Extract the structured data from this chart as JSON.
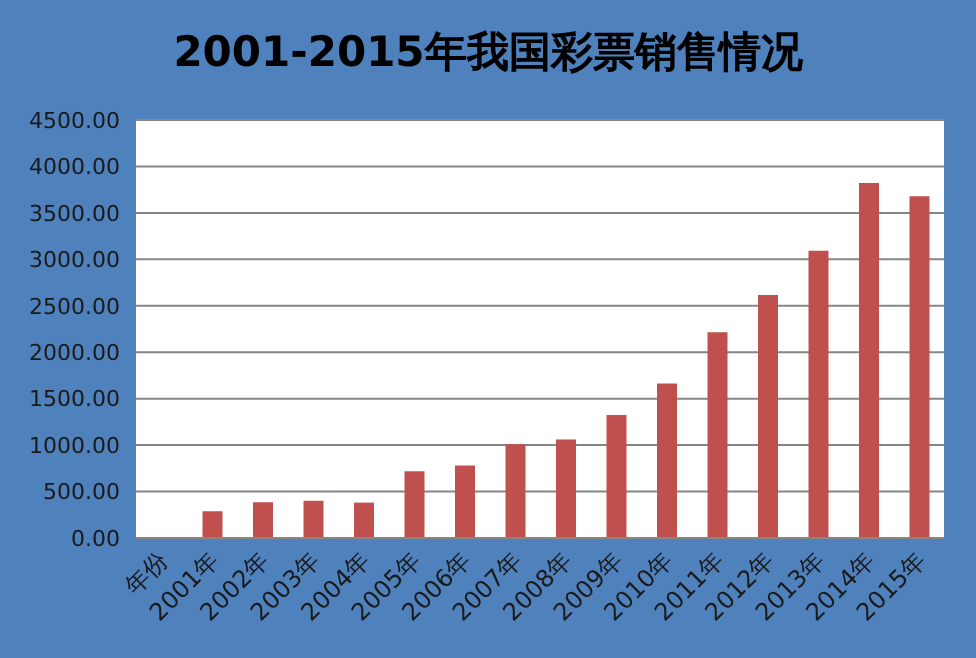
{
  "chart_data": {
    "type": "bar",
    "title": "2001-2015年我国彩票销售情况",
    "categories": [
      "年份",
      "2001年",
      "2002年",
      "2003年",
      "2004年",
      "2005年",
      "2006年",
      "2007年",
      "2008年",
      "2009年",
      "2010年",
      "2011年",
      "2012年",
      "2013年",
      "2014年",
      "2015年"
    ],
    "values": [
      null,
      288,
      385,
      401,
      381,
      718,
      780,
      1010,
      1060,
      1325,
      1662,
      2216,
      2615,
      3093,
      3823,
      3679
    ],
    "color": "#c0504d",
    "ylim": [
      0,
      4500
    ],
    "yticks": [
      {
        "value": 0,
        "label": "0.00"
      },
      {
        "value": 500,
        "label": "500.00"
      },
      {
        "value": 1000,
        "label": "1000.00"
      },
      {
        "value": 1500,
        "label": "1500.00"
      },
      {
        "value": 2000,
        "label": "2000.00"
      },
      {
        "value": 2500,
        "label": "2500.00"
      },
      {
        "value": 3000,
        "label": "3000.00"
      },
      {
        "value": 3500,
        "label": "3500.00"
      },
      {
        "value": 4000,
        "label": "4000.00"
      },
      {
        "value": 4500,
        "label": "4500.00"
      }
    ],
    "grid": "y"
  }
}
